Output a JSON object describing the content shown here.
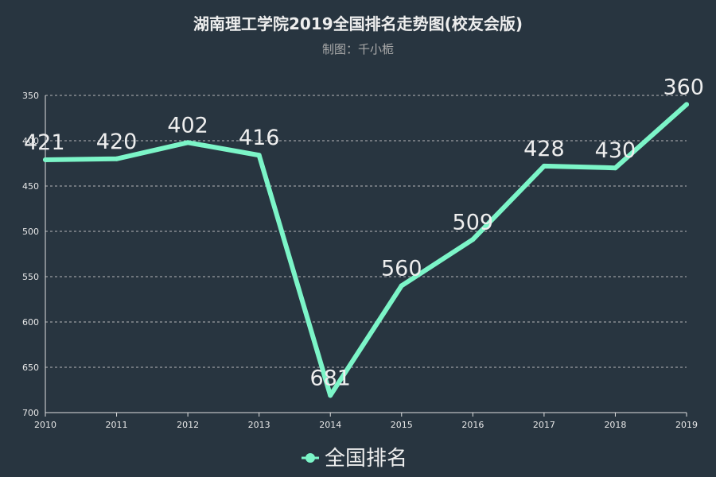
{
  "chart_data": {
    "type": "line",
    "title": "湖南理工学院2019全国排名走势图(校友会版)",
    "subtitle": "制图：千小栀",
    "categories": [
      "2010",
      "2011",
      "2012",
      "2013",
      "2014",
      "2015",
      "2016",
      "2017",
      "2018",
      "2019"
    ],
    "series": [
      {
        "name": "全国排名",
        "values": [
          421,
          420,
          402,
          416,
          681,
          560,
          509,
          428,
          430,
          360
        ]
      }
    ],
    "ylim": [
      350,
      700
    ],
    "y_inverse": true,
    "y_ticks": [
      350,
      400,
      450,
      500,
      550,
      600,
      650,
      700
    ],
    "grid": true,
    "legend_position": "bottom",
    "line_color": "#7cf5c8",
    "background": "#283540"
  }
}
